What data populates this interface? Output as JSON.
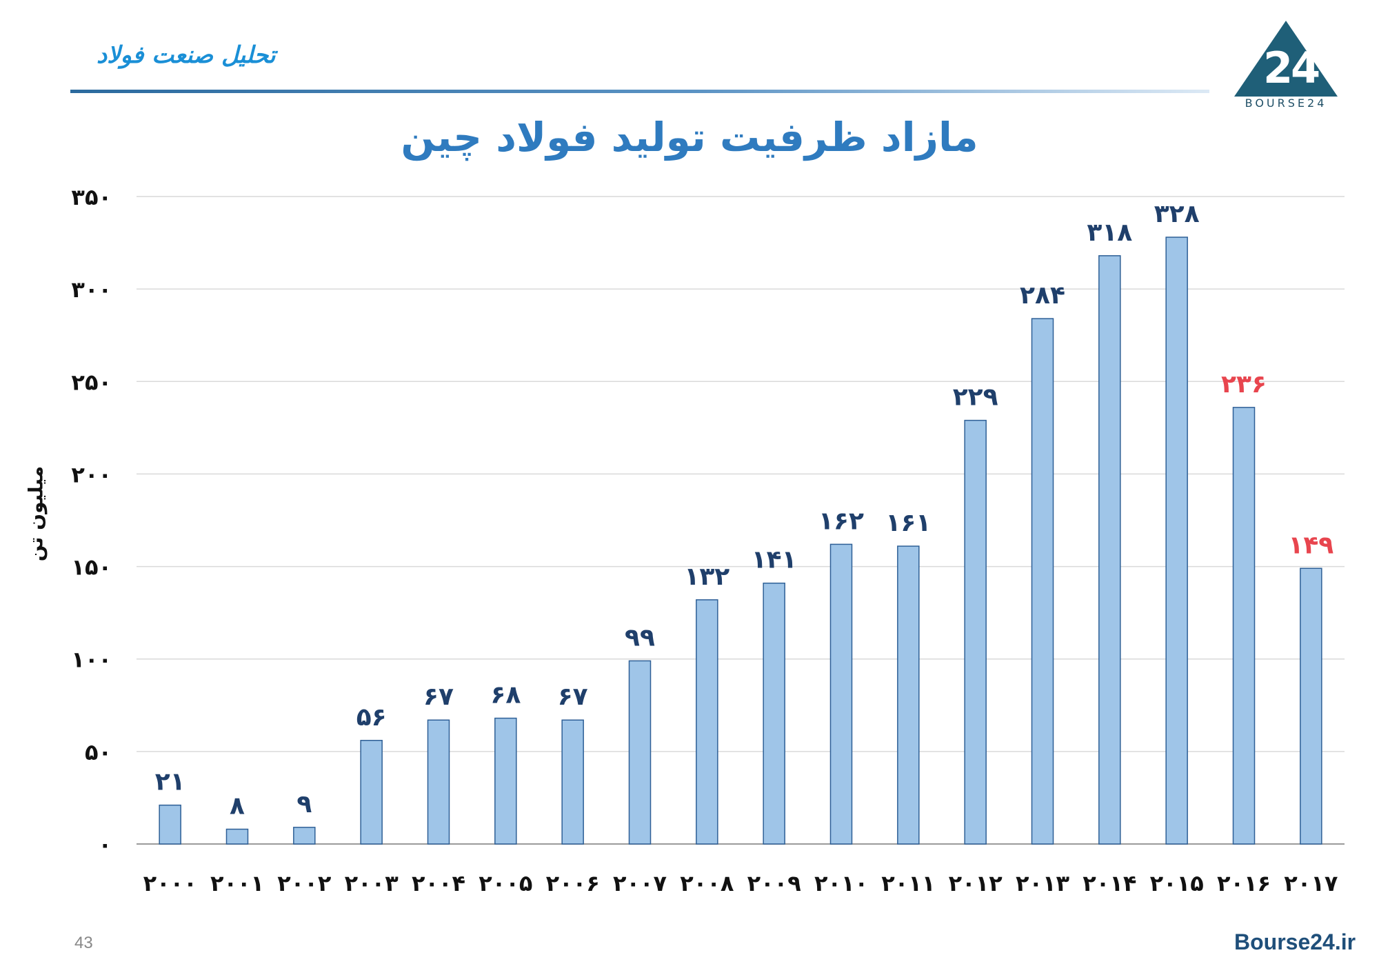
{
  "header": {
    "title": "تحلیل صنعت فولاد",
    "logo_text": "BOURSE24"
  },
  "footer": {
    "page_number": "43",
    "site": "Bourse24.ir"
  },
  "colors": {
    "bar_fill": "#9fc5e8",
    "bar_stroke": "#2e5f96",
    "label_default": "#1f3f6b",
    "label_highlight": "#e8454e",
    "title": "#2f7bbf"
  },
  "chart_data": {
    "type": "bar",
    "title": "مازاد ظرفیت تولید فولاد چین",
    "xlabel": "",
    "ylabel": "میلیون تن",
    "ylim": [
      0,
      350
    ],
    "yticks": [
      0,
      50,
      100,
      150,
      200,
      250,
      300,
      350
    ],
    "ytick_labels": [
      "۰",
      "۵۰",
      "۱۰۰",
      "۱۵۰",
      "۲۰۰",
      "۲۵۰",
      "۳۰۰",
      "۳۵۰"
    ],
    "grid": true,
    "categories": [
      "2000",
      "2001",
      "2002",
      "2003",
      "2004",
      "2005",
      "2006",
      "2007",
      "2008",
      "2009",
      "2010",
      "2011",
      "2012",
      "2013",
      "2014",
      "2015",
      "2016",
      "2017"
    ],
    "category_labels": [
      "۲۰۰۰",
      "۲۰۰۱",
      "۲۰۰۲",
      "۲۰۰۳",
      "۲۰۰۴",
      "۲۰۰۵",
      "۲۰۰۶",
      "۲۰۰۷",
      "۲۰۰۸",
      "۲۰۰۹",
      "۲۰۱۰",
      "۲۰۱۱",
      "۲۰۱۲",
      "۲۰۱۳",
      "۲۰۱۴",
      "۲۰۱۵",
      "۲۰۱۶",
      "۲۰۱۷"
    ],
    "values": [
      21,
      8,
      9,
      56,
      67,
      68,
      67,
      99,
      132,
      141,
      162,
      161,
      229,
      284,
      318,
      328,
      236,
      149
    ],
    "value_labels": [
      "۲۱",
      "۸",
      "۹",
      "۵۶",
      "۶۷",
      "۶۸",
      "۶۷",
      "۹۹",
      "۱۳۲",
      "۱۴۱",
      "۱۶۲",
      "۱۶۱",
      "۲۲۹",
      "۲۸۴",
      "۳۱۸",
      "۳۲۸",
      "۲۳۶",
      "۱۴۹"
    ],
    "highlight_categories": [
      "2016",
      "2017"
    ]
  }
}
